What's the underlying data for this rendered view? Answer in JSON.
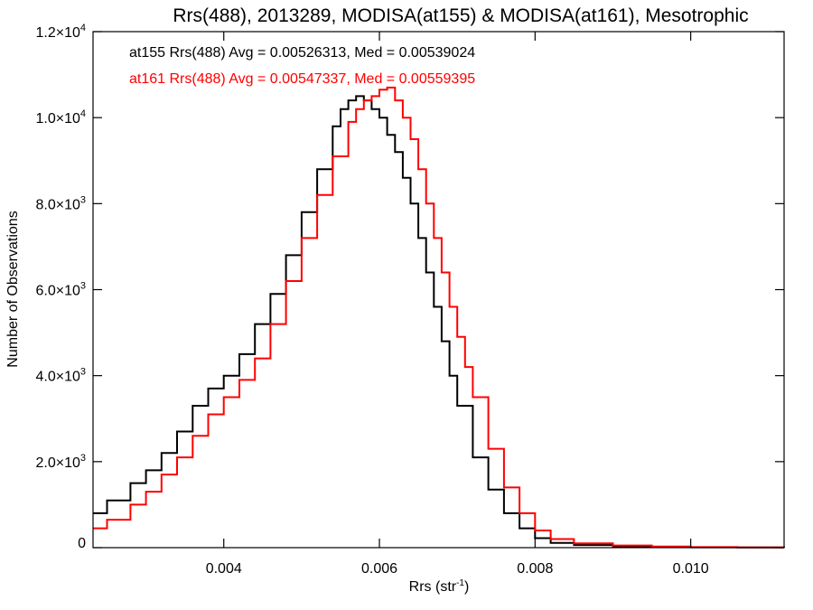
{
  "chart_data": {
    "type": "line",
    "title": "Rrs(488), 2013289, MODISA(at155) & MODISA(at161), Mesotrophic",
    "xlabel": "Rrs (str",
    "xlabel_sup": "-1",
    "xlabel_end": ")",
    "ylabel": "Number of Observations",
    "xlim": [
      0.00232,
      0.0112
    ],
    "ylim": [
      0,
      12000
    ],
    "grid": false,
    "x_ticks": [
      {
        "value": 0.004,
        "label": "0.004"
      },
      {
        "value": 0.006,
        "label": "0.006"
      },
      {
        "value": 0.008,
        "label": "0.008"
      },
      {
        "value": 0.01,
        "label": "0.010"
      }
    ],
    "y_ticks": [
      {
        "value": 0,
        "label": "0"
      },
      {
        "value": 2000,
        "label": "2.0×10",
        "sup": "3"
      },
      {
        "value": 4000,
        "label": "4.0×10",
        "sup": "3"
      },
      {
        "value": 6000,
        "label": "6.0×10",
        "sup": "3"
      },
      {
        "value": 8000,
        "label": "8.0×10",
        "sup": "3"
      },
      {
        "value": 10000,
        "label": "1.0×10",
        "sup": "4"
      },
      {
        "value": 12000,
        "label": "1.2×10",
        "sup": "4"
      }
    ],
    "annotations": [
      {
        "text": "at155 Rrs(488) Avg = 0.00526313, Med = 0.00539024",
        "color": "#000000"
      },
      {
        "text": "at161 Rrs(488) Avg = 0.00547337, Med = 0.00559395",
        "color": "#ff0000"
      }
    ],
    "series": [
      {
        "color": "#000000",
        "x": [
          0.00232,
          0.0025,
          0.0028,
          0.003,
          0.0032,
          0.0034,
          0.0036,
          0.0038,
          0.004,
          0.0042,
          0.0044,
          0.0046,
          0.0048,
          0.005,
          0.0052,
          0.0054,
          0.0055,
          0.0056,
          0.0057,
          0.0058,
          0.0059,
          0.006,
          0.0061,
          0.0062,
          0.0063,
          0.0064,
          0.0065,
          0.0066,
          0.0067,
          0.0068,
          0.0069,
          0.007,
          0.0072,
          0.0074,
          0.0076,
          0.0078,
          0.008,
          0.0082,
          0.0085,
          0.009,
          0.0095,
          0.01,
          0.0106,
          0.0112
        ],
        "y": [
          800,
          1100,
          1500,
          1800,
          2200,
          2700,
          3300,
          3700,
          4000,
          4500,
          5200,
          5900,
          6800,
          7800,
          8800,
          9800,
          10200,
          10400,
          10500,
          10400,
          10200,
          10000,
          9600,
          9200,
          8600,
          8000,
          7200,
          6400,
          5600,
          4800,
          4000,
          3300,
          2100,
          1350,
          800,
          450,
          220,
          110,
          60,
          30,
          15,
          8,
          5,
          3
        ]
      },
      {
        "color": "#ff0000",
        "x": [
          0.00232,
          0.0025,
          0.0028,
          0.003,
          0.0032,
          0.0034,
          0.0036,
          0.0038,
          0.004,
          0.0042,
          0.0044,
          0.0046,
          0.0048,
          0.005,
          0.0052,
          0.0054,
          0.0056,
          0.0057,
          0.0058,
          0.0059,
          0.006,
          0.0061,
          0.0062,
          0.0063,
          0.0064,
          0.0065,
          0.0066,
          0.0067,
          0.0068,
          0.0069,
          0.007,
          0.0071,
          0.0072,
          0.0074,
          0.0076,
          0.0078,
          0.008,
          0.0082,
          0.0085,
          0.009,
          0.0095,
          0.01,
          0.0106,
          0.0112
        ],
        "y": [
          450,
          650,
          1000,
          1300,
          1700,
          2100,
          2600,
          3100,
          3500,
          3900,
          4400,
          5200,
          6200,
          7200,
          8200,
          9100,
          9900,
          10200,
          10400,
          10500,
          10650,
          10700,
          10400,
          10000,
          9500,
          8800,
          8000,
          7200,
          6400,
          5600,
          4900,
          4200,
          3500,
          2300,
          1400,
          800,
          400,
          200,
          100,
          50,
          25,
          12,
          6,
          4
        ]
      }
    ]
  }
}
